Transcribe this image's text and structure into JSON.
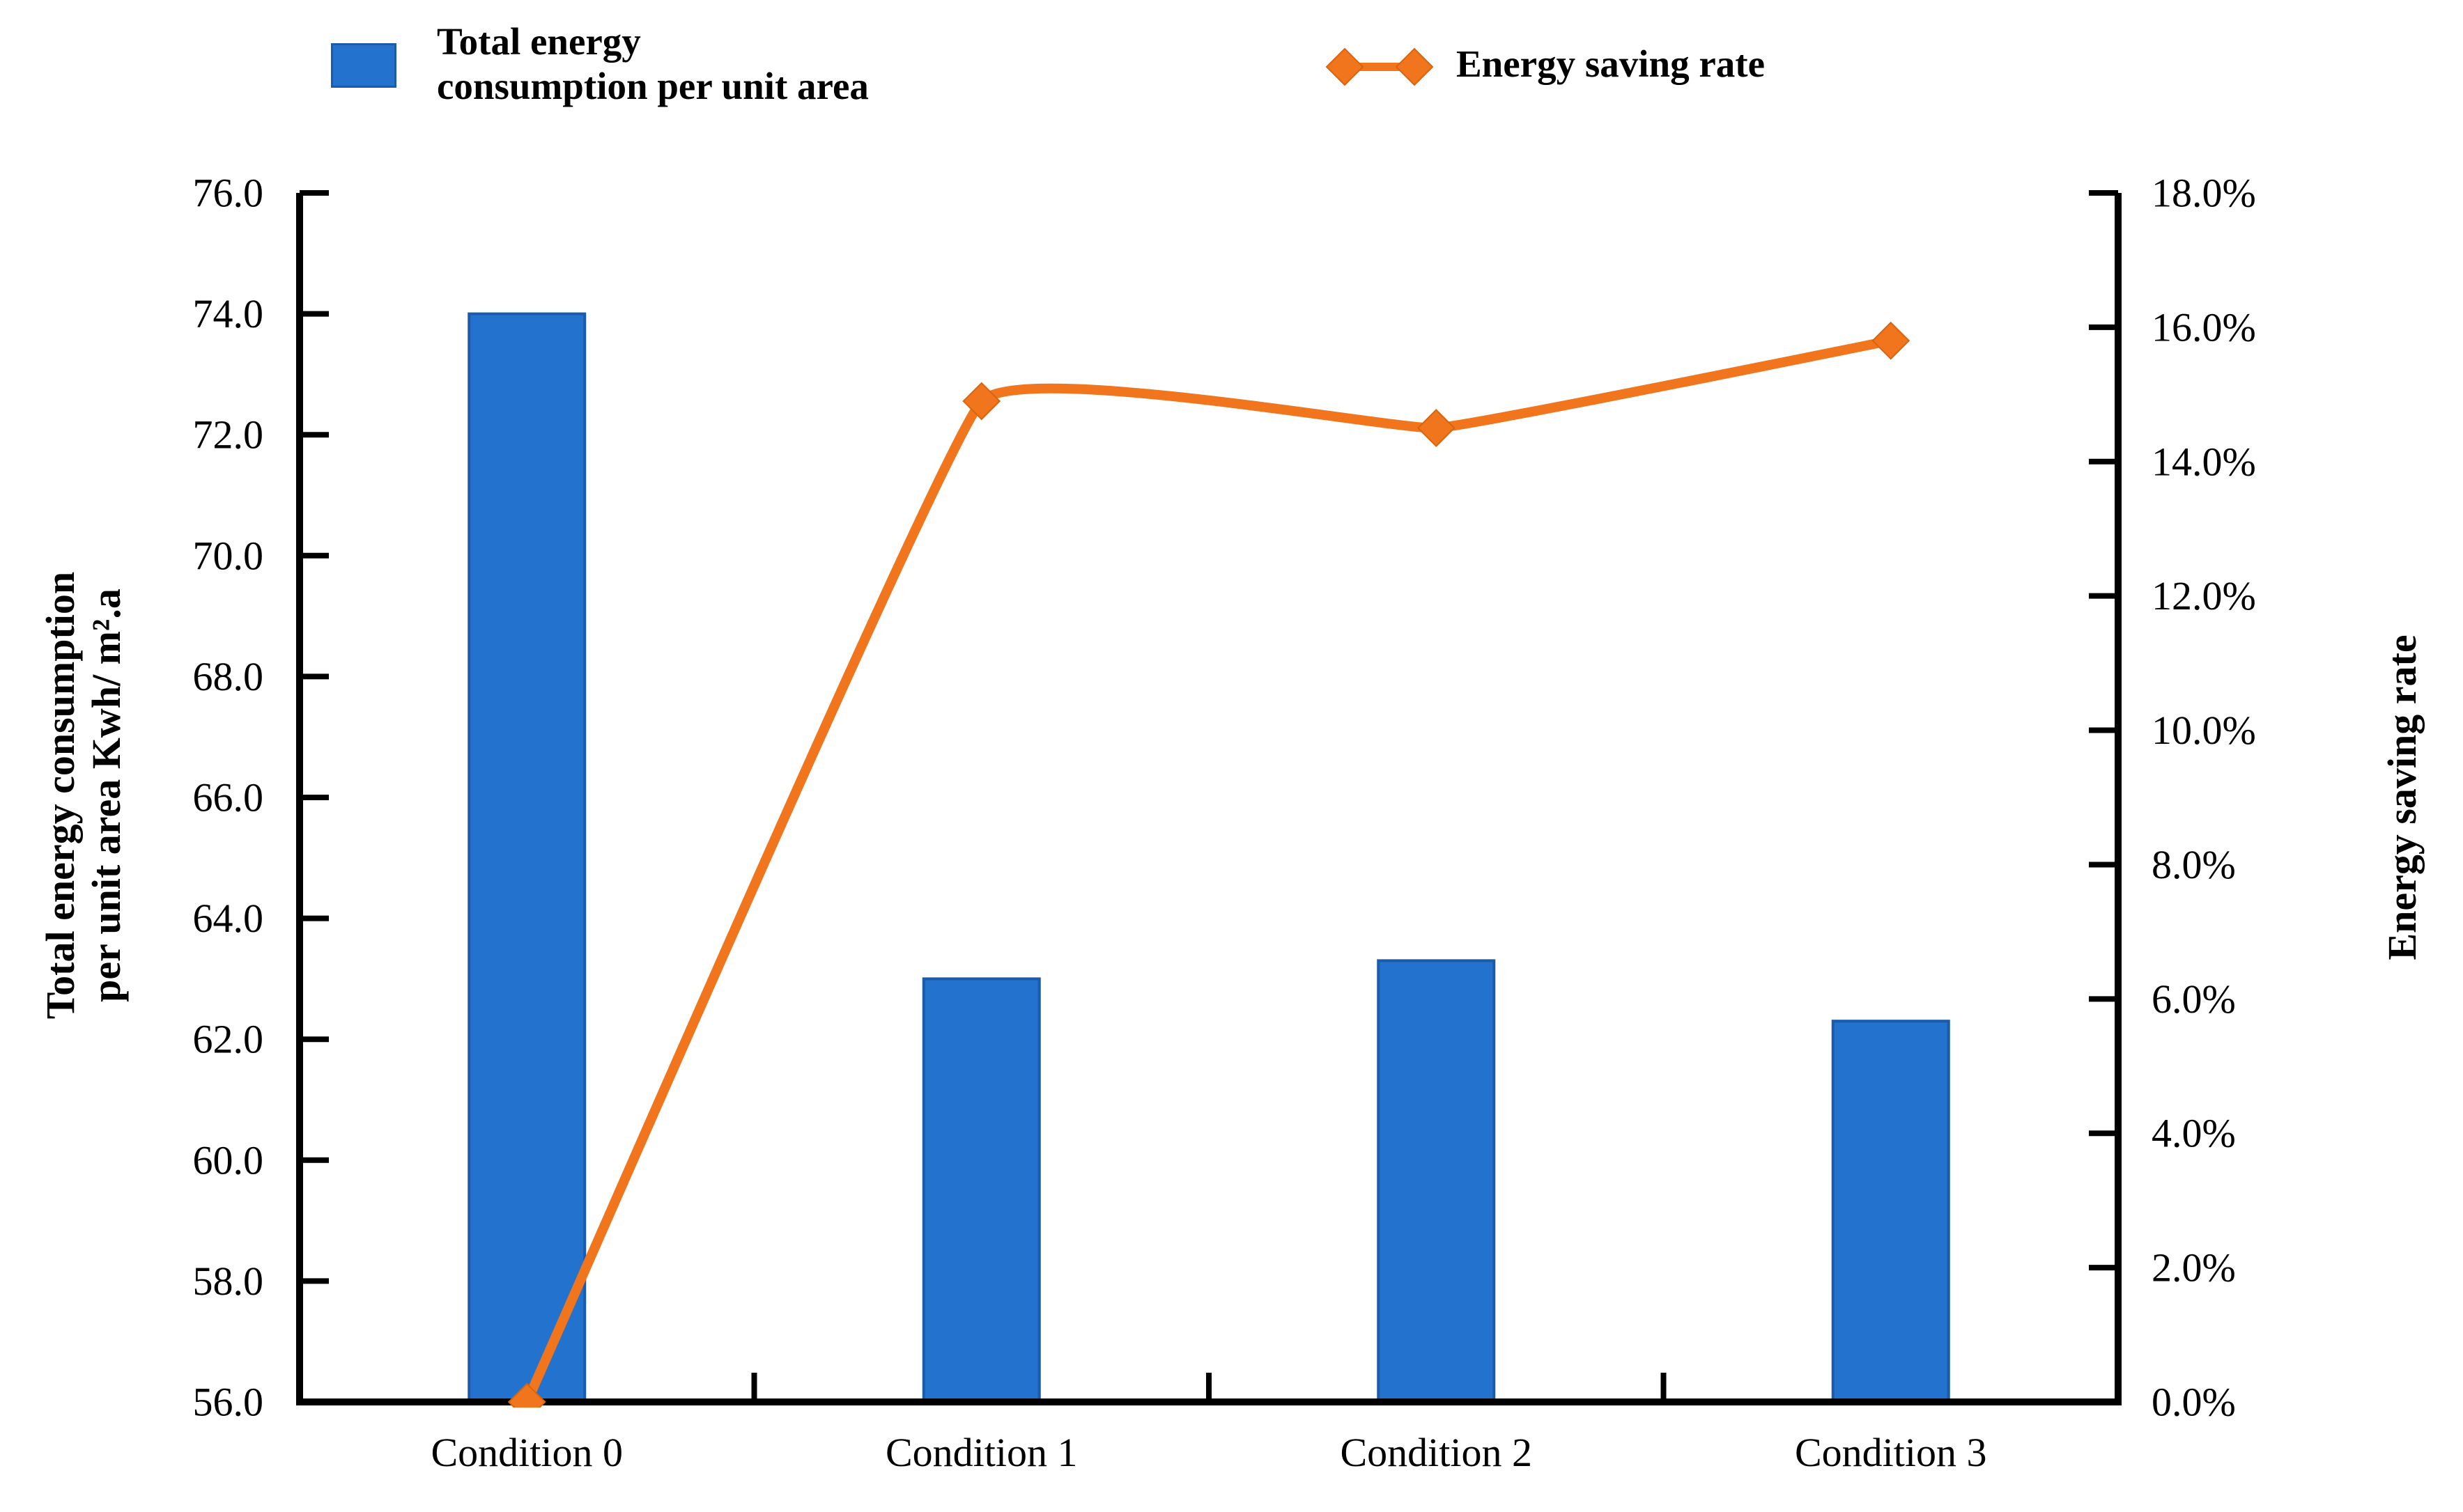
{
  "legend": {
    "items": [
      {
        "id": "consumption",
        "label_lines": [
          "Total energy",
          "consumption per unit area"
        ],
        "swatch_color": "#2272CE"
      },
      {
        "id": "saving",
        "label_lines": [
          "Energy saving rate"
        ],
        "marker_color": "#F0751C"
      }
    ]
  },
  "chart_data": {
    "type": "combo bar+line",
    "categories": [
      "Condition 0",
      "Condition 1",
      "Condition 2",
      "Condition 3"
    ],
    "series": [
      {
        "name": "Total energy consumption per unit area",
        "type": "bar",
        "axis": "left",
        "unit": "Kwh/m².a",
        "color": "#2272CE",
        "values": [
          74.0,
          63.0,
          63.3,
          62.3
        ]
      },
      {
        "name": "Energy saving rate",
        "type": "line",
        "axis": "right",
        "unit": "%",
        "marker": "diamond",
        "color": "#F0751C",
        "values": [
          0.0,
          14.9,
          14.5,
          15.8
        ]
      }
    ],
    "left_axis": {
      "title_lines": [
        "Total energy consumption",
        "per unit area Kwh/ m².a"
      ],
      "min": 56.0,
      "max": 76.0,
      "step": 2.0,
      "tick_labels_top_to_bottom": [
        "76.0",
        "74.0",
        "72.0",
        "70.0",
        "68.0",
        "66.0",
        "64.0",
        "62.0",
        "60.0",
        "58.0",
        "56.0"
      ]
    },
    "right_axis": {
      "title": "Energy saving rate",
      "min": 0.0,
      "max": 18.0,
      "step": 2.0,
      "tick_labels_top_to_bottom": [
        "18.0%",
        "16.0%",
        "14.0%",
        "12.0%",
        "10.0%",
        "8.0%",
        "6.0%",
        "4.0%",
        "2.0%",
        "0.0%"
      ]
    },
    "grid": false,
    "legend_position": "top"
  },
  "colors": {
    "bar": "#2272CE",
    "bar_border": "#1A5BAB",
    "line": "#F0751C",
    "marker_stroke": "#D86410",
    "axis": "#000000",
    "background": "#FFFFFF",
    "text": "#000000"
  }
}
